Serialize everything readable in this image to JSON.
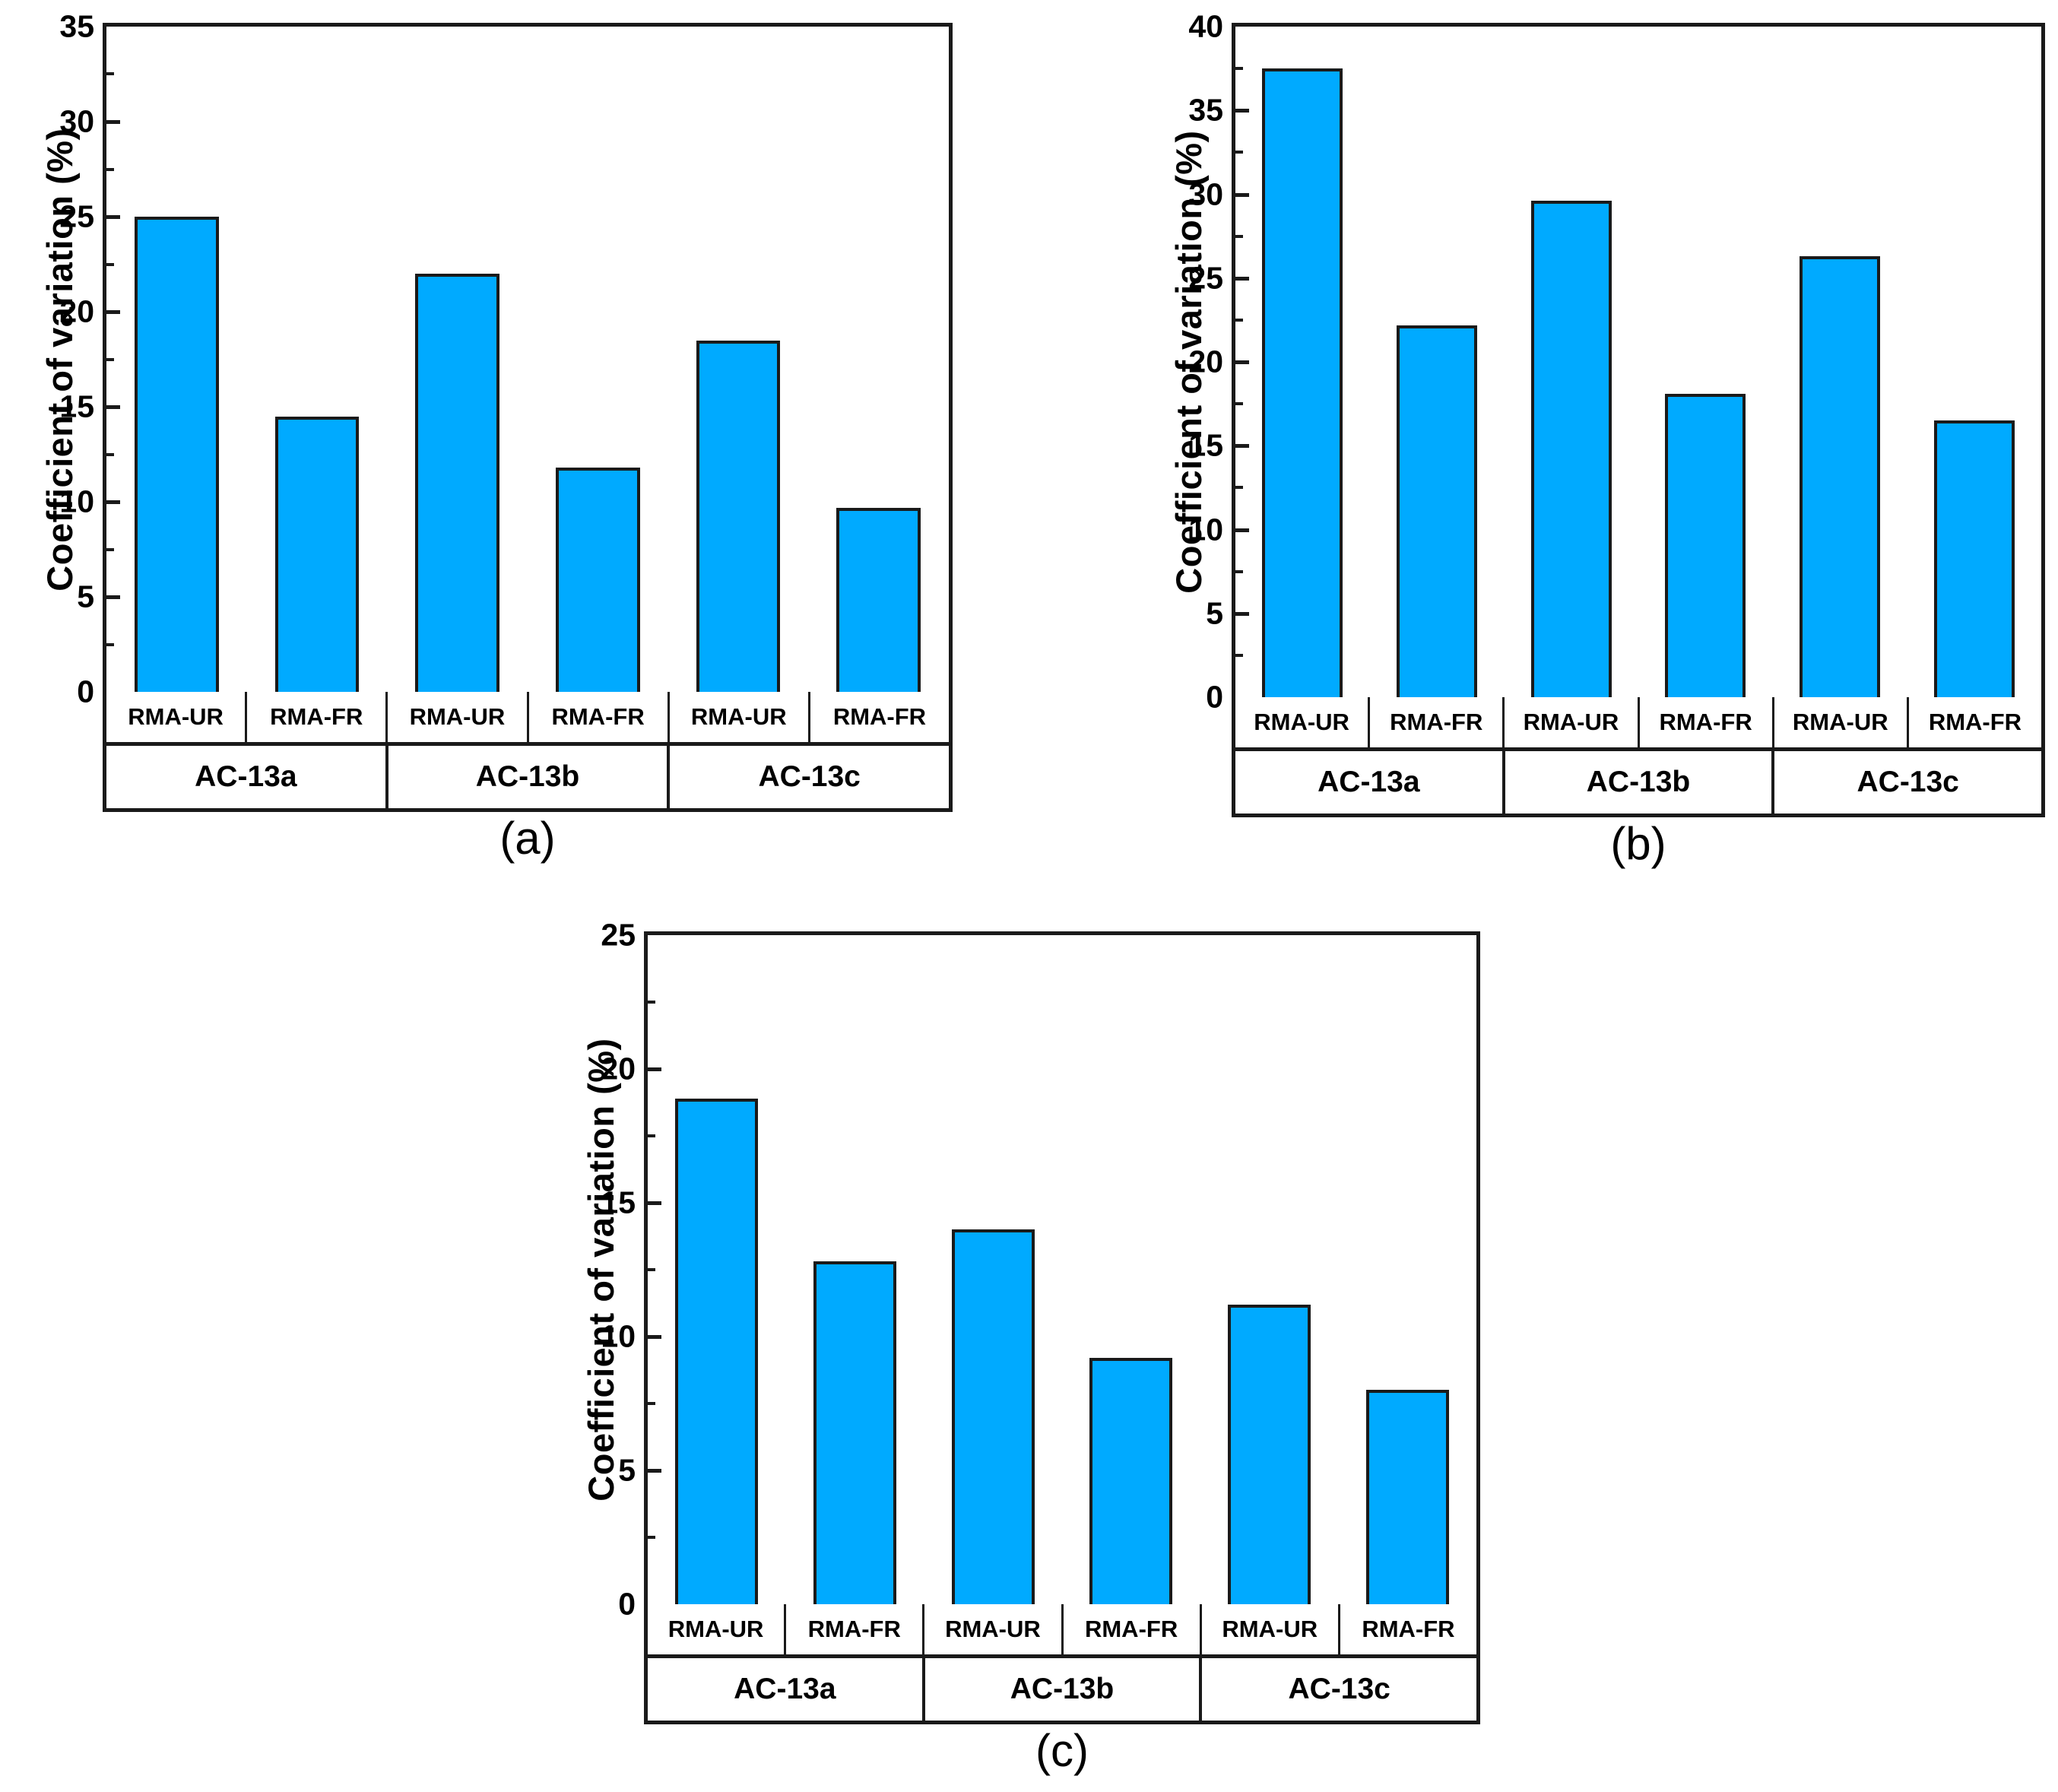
{
  "figure": {
    "background": "#ffffff",
    "bar_color": "#00AAFF",
    "line_color": "#1a1a1a"
  },
  "chart_data": [
    {
      "type": "bar",
      "panel": "(a)",
      "ylabel": "Coefficient of variation (%)",
      "ylim": [
        0,
        35
      ],
      "major_tick": 5,
      "minor_tick": 2.5,
      "grid": false,
      "legend": "none",
      "groups": [
        "AC-13a",
        "AC-13b",
        "AC-13c"
      ],
      "series_labels": [
        "RMA-UR",
        "RMA-FR",
        "RMA-UR",
        "RMA-FR",
        "RMA-UR",
        "RMA-FR"
      ],
      "values": [
        25.0,
        14.5,
        22.0,
        11.8,
        18.5,
        9.7
      ],
      "bar_color": "#00AAFF"
    },
    {
      "type": "bar",
      "panel": "(b)",
      "ylabel": "Coefficient of variation (%)",
      "ylim": [
        0,
        40
      ],
      "major_tick": 5,
      "minor_tick": 2.5,
      "grid": false,
      "legend": "none",
      "groups": [
        "AC-13a",
        "AC-13b",
        "AC-13c"
      ],
      "series_labels": [
        "RMA-UR",
        "RMA-FR",
        "RMA-UR",
        "RMA-FR",
        "RMA-UR",
        "RMA-FR"
      ],
      "values": [
        37.5,
        22.2,
        29.6,
        18.1,
        26.3,
        16.5
      ],
      "bar_color": "#00AAFF"
    },
    {
      "type": "bar",
      "panel": "(c)",
      "ylabel": "Coefficient of variation (%)",
      "ylim": [
        0,
        25
      ],
      "major_tick": 5,
      "minor_tick": 2.5,
      "grid": false,
      "legend": "none",
      "groups": [
        "AC-13a",
        "AC-13b",
        "AC-13c"
      ],
      "series_labels": [
        "RMA-UR",
        "RMA-FR",
        "RMA-UR",
        "RMA-FR",
        "RMA-UR",
        "RMA-FR"
      ],
      "values": [
        18.9,
        12.8,
        14.0,
        9.2,
        11.2,
        8.0
      ],
      "bar_color": "#00AAFF"
    }
  ]
}
